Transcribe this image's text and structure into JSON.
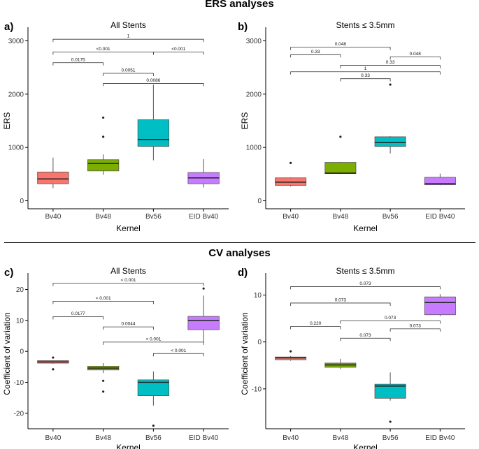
{
  "sections": {
    "ers_title": "ERS analyses",
    "cv_title": "CV analyses"
  },
  "colors": {
    "Bv40": "#f8766d",
    "Bv48": "#7cae00",
    "Bv56": "#00bfc4",
    "EID Bv40": "#c77cff"
  },
  "chart_data": [
    {
      "id": "a",
      "letter": "a)",
      "type": "box",
      "title": "All Stents",
      "xlabel": "Kernel",
      "ylabel": "ERS",
      "categories": [
        "Bv40",
        "Bv48",
        "Bv56",
        "EID Bv40"
      ],
      "ylim": [
        -150,
        3150
      ],
      "yticks": [
        0,
        1000,
        2000,
        3000
      ],
      "ytick_labels": [
        "0",
        "1000",
        "2000",
        "3000"
      ],
      "boxes": [
        {
          "category": "Bv40",
          "whisker_low": 240,
          "q1": 320,
          "median": 410,
          "q3": 540,
          "whisker_high": 810,
          "outliers": []
        },
        {
          "category": "Bv48",
          "whisker_low": 490,
          "q1": 560,
          "median": 700,
          "q3": 770,
          "whisker_high": 870,
          "outliers": [
            1200,
            1560
          ]
        },
        {
          "category": "Bv56",
          "whisker_low": 760,
          "q1": 1020,
          "median": 1150,
          "q3": 1520,
          "whisker_high": 2180,
          "outliers": []
        },
        {
          "category": "EID Bv40",
          "whisker_low": 250,
          "q1": 320,
          "median": 430,
          "q3": 530,
          "whisker_high": 780,
          "outliers": []
        }
      ],
      "comparisons": [
        {
          "from": 0,
          "to": 3,
          "y": 3030,
          "label": "1"
        },
        {
          "from": 0,
          "to": 2,
          "y": 2790,
          "label": "<0.001"
        },
        {
          "from": 2,
          "to": 3,
          "y": 2790,
          "label": "<0.001"
        },
        {
          "from": 0,
          "to": 1,
          "y": 2590,
          "label": "0.0175"
        },
        {
          "from": 1,
          "to": 2,
          "y": 2390,
          "label": "0.0051"
        },
        {
          "from": 1,
          "to": 3,
          "y": 2200,
          "label": "0.0086"
        }
      ]
    },
    {
      "id": "b",
      "letter": "b)",
      "type": "box",
      "title": "Stents ≤ 3.5mm",
      "xlabel": "Kernel",
      "ylabel": "ERS",
      "categories": [
        "Bv40",
        "Bv48",
        "Bv56",
        "EID Bv40"
      ],
      "ylim": [
        -150,
        3150
      ],
      "yticks": [
        0,
        1000,
        2000,
        3000
      ],
      "ytick_labels": [
        "0",
        "1000",
        "2000",
        "3000"
      ],
      "boxes": [
        {
          "category": "Bv40",
          "whisker_low": 270,
          "q1": 290,
          "median": 350,
          "q3": 430,
          "whisker_high": 440,
          "outliers": [
            710
          ]
        },
        {
          "category": "Bv48",
          "whisker_low": 500,
          "q1": 510,
          "median": 520,
          "q3": 720,
          "whisker_high": 730,
          "outliers": [
            1200
          ]
        },
        {
          "category": "Bv56",
          "whisker_low": 890,
          "q1": 1020,
          "median": 1090,
          "q3": 1200,
          "whisker_high": 1210,
          "outliers": [
            2180
          ]
        },
        {
          "category": "EID Bv40",
          "whisker_low": 290,
          "q1": 300,
          "median": 320,
          "q3": 440,
          "whisker_high": 510,
          "outliers": []
        }
      ],
      "comparisons": [
        {
          "from": 0,
          "to": 2,
          "y": 2880,
          "label": "0.048"
        },
        {
          "from": 0,
          "to": 1,
          "y": 2740,
          "label": "0.33"
        },
        {
          "from": 2,
          "to": 3,
          "y": 2700,
          "label": "0.048"
        },
        {
          "from": 1,
          "to": 3,
          "y": 2540,
          "label": "0.33"
        },
        {
          "from": 0,
          "to": 3,
          "y": 2420,
          "label": "1"
        },
        {
          "from": 1,
          "to": 2,
          "y": 2290,
          "label": "0.33"
        }
      ]
    },
    {
      "id": "c",
      "letter": "c)",
      "type": "box",
      "title": "All Stents",
      "xlabel": "Kernel",
      "ylabel": "Coefficient of variation",
      "categories": [
        "Bv40",
        "Bv48",
        "Bv56",
        "EID Bv40"
      ],
      "ylim": [
        -25,
        23.5
      ],
      "yticks": [
        -20,
        -10,
        0,
        10,
        20
      ],
      "ytick_labels": [
        "-20",
        "-10",
        "0",
        "10",
        "20"
      ],
      "boxes": [
        {
          "category": "Bv40",
          "whisker_low": -4.0,
          "q1": -3.8,
          "median": -3.4,
          "q3": -3.0,
          "whisker_high": -2.9,
          "outliers": [
            -2.0,
            -5.8
          ]
        },
        {
          "category": "Bv48",
          "whisker_low": -7.0,
          "q1": -6.0,
          "median": -5.4,
          "q3": -4.8,
          "whisker_high": -3.8,
          "outliers": [
            -9.5,
            -13.0
          ]
        },
        {
          "category": "Bv56",
          "whisker_low": -17.5,
          "q1": -14.3,
          "median": -10.0,
          "q3": -9.2,
          "whisker_high": -6.5,
          "outliers": [
            -24.0
          ]
        },
        {
          "category": "EID Bv40",
          "whisker_low": 3.0,
          "q1": 7.0,
          "median": 10.0,
          "q3": 11.3,
          "whisker_high": 18.0,
          "outliers": [
            20.3
          ]
        }
      ],
      "comparisons": [
        {
          "from": 0,
          "to": 3,
          "y": 22.0,
          "label": "< 0.001"
        },
        {
          "from": 0,
          "to": 2,
          "y": 16.2,
          "label": "< 0.001"
        },
        {
          "from": 0,
          "to": 1,
          "y": 11.2,
          "label": "0.0177"
        },
        {
          "from": 1,
          "to": 2,
          "y": 7.9,
          "label": "0.0044"
        },
        {
          "from": 1,
          "to": 3,
          "y": 3.0,
          "label": "< 0.001"
        },
        {
          "from": 2,
          "to": 3,
          "y": -0.7,
          "label": "< 0.001"
        }
      ]
    },
    {
      "id": "d",
      "letter": "d)",
      "type": "box",
      "title": "Stents ≤ 3.5mm",
      "xlabel": "Kernel",
      "ylabel": "Coefficient of variation",
      "categories": [
        "Bv40",
        "Bv48",
        "Bv56",
        "EID Bv40"
      ],
      "ylim": [
        -18.5,
        13.5
      ],
      "yticks": [
        -10,
        0,
        10
      ],
      "ytick_labels": [
        "-10",
        "0",
        "10"
      ],
      "boxes": [
        {
          "category": "Bv40",
          "whisker_low": -4.0,
          "q1": -3.8,
          "median": -3.4,
          "q3": -3.2,
          "whisker_high": -3.0,
          "outliers": [
            -2.0
          ]
        },
        {
          "category": "Bv48",
          "whisker_low": -5.8,
          "q1": -5.4,
          "median": -4.9,
          "q3": -4.5,
          "whisker_high": -3.6,
          "outliers": []
        },
        {
          "category": "Bv56",
          "whisker_low": -12.5,
          "q1": -12.0,
          "median": -9.4,
          "q3": -9.0,
          "whisker_high": -6.5,
          "outliers": [
            -17.0
          ]
        },
        {
          "category": "EID Bv40",
          "whisker_low": 5.5,
          "q1": 5.8,
          "median": 8.4,
          "q3": 9.6,
          "whisker_high": 10.2,
          "outliers": []
        }
      ],
      "comparisons": [
        {
          "from": 0,
          "to": 3,
          "y": 11.8,
          "label": "0.073"
        },
        {
          "from": 0,
          "to": 2,
          "y": 8.3,
          "label": "0.073"
        },
        {
          "from": 1,
          "to": 3,
          "y": 4.5,
          "label": "0.073"
        },
        {
          "from": 0,
          "to": 1,
          "y": 3.3,
          "label": "0.220"
        },
        {
          "from": 2,
          "to": 3,
          "y": 2.8,
          "label": "0.073"
        },
        {
          "from": 1,
          "to": 2,
          "y": 0.8,
          "label": "0.073"
        }
      ]
    }
  ]
}
